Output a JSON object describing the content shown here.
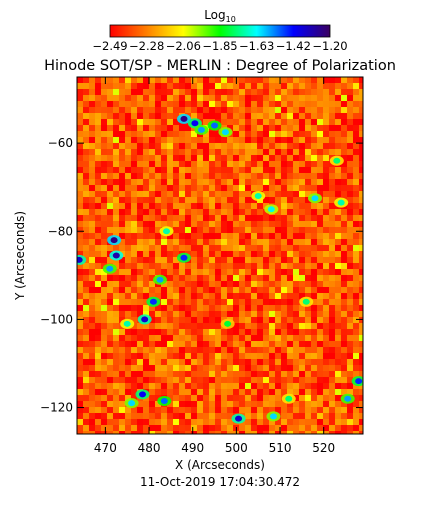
{
  "chart_data": {
    "type": "heatmap",
    "title": "Hinode SOT/SP - MERLIN : Degree of Polarization",
    "xlabel": "X (Arcseconds)",
    "ylabel": "Y (Arcseconds)",
    "timestamp": "11-Oct-2019 17:04:30.472",
    "xlim": [
      463.5,
      529
    ],
    "ylim": [
      -126,
      -45
    ],
    "x_ticks": [
      470,
      480,
      490,
      500,
      510,
      520
    ],
    "y_ticks": [
      -60,
      -80,
      -100,
      -120
    ],
    "colorbar": {
      "label": "Log",
      "label_subscript": "10",
      "scale": "log10",
      "range": [
        -2.49,
        -1.2
      ],
      "tick_labels": [
        "-2.49",
        "-2.28",
        "-2.06",
        "-1.85",
        "-1.63",
        "-1.42",
        "-1.20"
      ],
      "colormap": [
        "#ff0000",
        "#ff7f00",
        "#ffff00",
        "#00ff00",
        "#00ffff",
        "#0000ff",
        "#3a0060"
      ]
    },
    "background_level": -2.36,
    "features": [
      {
        "x": 488.0,
        "y": -54.5,
        "value": -1.25
      },
      {
        "x": 490.5,
        "y": -55.5,
        "value": -1.4
      },
      {
        "x": 492.0,
        "y": -57.0,
        "value": -1.55
      },
      {
        "x": 495.0,
        "y": -56.0,
        "value": -1.5
      },
      {
        "x": 497.5,
        "y": -57.5,
        "value": -1.6
      },
      {
        "x": 472.0,
        "y": -82.0,
        "value": -1.25
      },
      {
        "x": 472.5,
        "y": -85.5,
        "value": -1.3
      },
      {
        "x": 464.0,
        "y": -86.5,
        "value": -1.35
      },
      {
        "x": 471.0,
        "y": -88.5,
        "value": -1.55
      },
      {
        "x": 488.0,
        "y": -86.0,
        "value": -1.45
      },
      {
        "x": 484.0,
        "y": -80.0,
        "value": -1.7
      },
      {
        "x": 482.5,
        "y": -91.0,
        "value": -1.55
      },
      {
        "x": 481.0,
        "y": -96.0,
        "value": -1.45
      },
      {
        "x": 479.0,
        "y": -100.0,
        "value": -1.35
      },
      {
        "x": 475.0,
        "y": -101.0,
        "value": -1.7
      },
      {
        "x": 478.5,
        "y": -117.0,
        "value": -1.4
      },
      {
        "x": 476.0,
        "y": -119.0,
        "value": -1.6
      },
      {
        "x": 483.5,
        "y": -118.5,
        "value": -1.5
      },
      {
        "x": 500.5,
        "y": -122.5,
        "value": -1.35
      },
      {
        "x": 508.5,
        "y": -122.0,
        "value": -1.6
      },
      {
        "x": 525.5,
        "y": -118.0,
        "value": -1.55
      },
      {
        "x": 528.0,
        "y": -114.0,
        "value": -1.45
      },
      {
        "x": 508.0,
        "y": -75.0,
        "value": -1.65
      },
      {
        "x": 518.0,
        "y": -72.5,
        "value": -1.6
      },
      {
        "x": 524.0,
        "y": -73.5,
        "value": -1.7
      },
      {
        "x": 523.0,
        "y": -64.0,
        "value": -1.75
      },
      {
        "x": 505.0,
        "y": -72.0,
        "value": -1.7
      },
      {
        "x": 512.0,
        "y": -118.0,
        "value": -1.75
      },
      {
        "x": 516.0,
        "y": -96.0,
        "value": -1.75
      },
      {
        "x": 498.0,
        "y": -101.0,
        "value": -1.8
      }
    ]
  }
}
